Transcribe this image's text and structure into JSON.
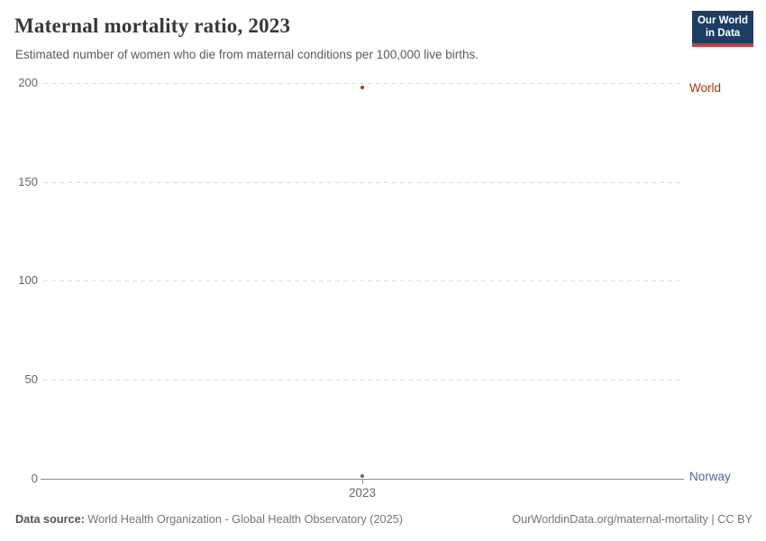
{
  "header": {
    "title": "Maternal mortality ratio, 2023",
    "subtitle": "Estimated number of women who die from maternal conditions per 100,000 live births.",
    "logo": {
      "line1": "Our World",
      "line2": "in Data"
    }
  },
  "chart_data": {
    "type": "scatter",
    "x": [
      2023
    ],
    "series": [
      {
        "name": "World",
        "values": [
          197
        ],
        "color": "#b13507"
      },
      {
        "name": "Norway",
        "values": [
          2
        ],
        "color": "#4c6a9c"
      }
    ],
    "title": "Maternal mortality ratio, 2023",
    "xlabel": "",
    "ylabel": "",
    "ylim": [
      0,
      200
    ],
    "yticks": [
      0,
      50,
      100,
      150,
      200
    ],
    "xticks": [
      2023
    ],
    "grid": "horizontal dashed gridlines at 50,100,150,200; solid baseline at 0",
    "legend_position": "entity labels at right edge of plot"
  },
  "axes": {
    "y_tick_labels": [
      "200",
      "150",
      "100",
      "50",
      "0"
    ],
    "x_tick_label": "2023"
  },
  "entity_labels": [
    {
      "label": "World",
      "color": "#b13507"
    },
    {
      "label": "Norway",
      "color": "#4c6a9c"
    }
  ],
  "footer": {
    "source_label": "Data source:",
    "source_text": " World Health Organization - Global Health Observatory (2025)",
    "credit": "OurWorldinData.org/maternal-mortality | CC BY"
  },
  "colors": {
    "world": "#b13507",
    "norway": "#4c6a9c",
    "title": "#383838",
    "subtitle": "#5b5b5b",
    "axis_text": "#666666",
    "gridline": "#dcdcdc",
    "axis_line": "#8f8f8f",
    "logo_bg": "#1d3d63",
    "logo_accent": "#cc3b3b"
  }
}
